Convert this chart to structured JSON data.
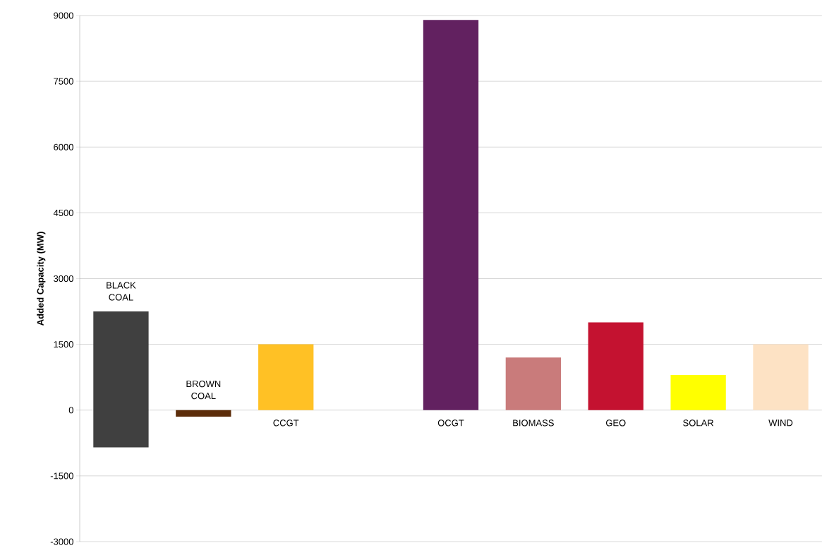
{
  "chart_data": {
    "type": "bar",
    "ylabel": "Added Capacity (MW)",
    "categories": [
      "BLACK COAL",
      "BROWN COAL",
      "CCGT",
      null,
      "OCGT",
      "BIOMASS",
      "GEO",
      "SOLAR",
      "WIND"
    ],
    "base": [
      -850,
      -150,
      0,
      null,
      0,
      0,
      0,
      0,
      0
    ],
    "values": [
      3100,
      150,
      1500,
      null,
      8900,
      1200,
      2000,
      800,
      1500
    ],
    "colors": [
      "#404040",
      "#5c2d0a",
      "#ffc125",
      "#ffffff",
      "#622160",
      "#c97b7b",
      "#c41230",
      "#ffff00",
      "#fde2c4"
    ],
    "ylim": [
      -3000,
      9000
    ],
    "yticks": [
      -3000,
      -1500,
      0,
      1500,
      3000,
      4500,
      6000,
      7500,
      9000
    ],
    "grid": "y"
  }
}
